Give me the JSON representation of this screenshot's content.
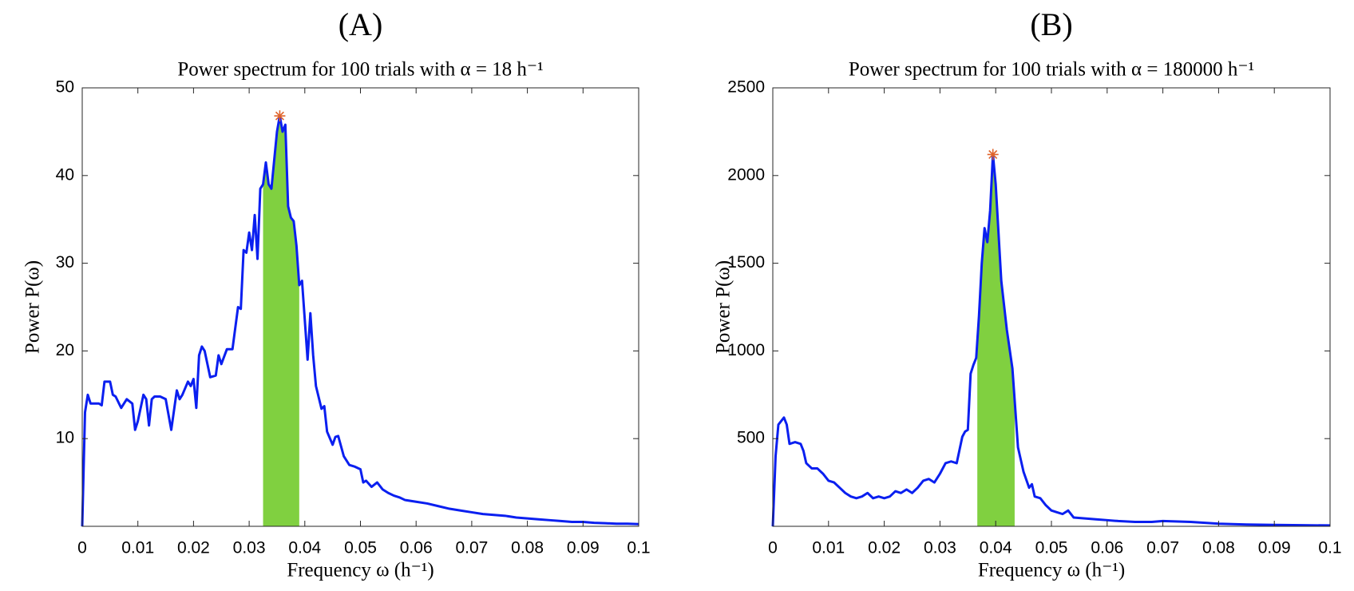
{
  "chart_data": [
    {
      "type": "line",
      "title": "(A)",
      "subtitle": "Power spectrum for 100 trials with α = 18 h⁻¹",
      "xlabel": "Frequency ω (h⁻¹)",
      "ylabel": "Power P(ω)",
      "color": "#0a1ff0",
      "x": [
        0,
        0.0005,
        0.001,
        0.0015,
        0.002,
        0.003,
        0.0035,
        0.004,
        0.005,
        0.0055,
        0.006,
        0.007,
        0.008,
        0.009,
        0.0095,
        0.01,
        0.011,
        0.0115,
        0.012,
        0.0125,
        0.013,
        0.014,
        0.015,
        0.016,
        0.017,
        0.0175,
        0.018,
        0.019,
        0.0195,
        0.02,
        0.0205,
        0.021,
        0.0215,
        0.022,
        0.023,
        0.024,
        0.0245,
        0.025,
        0.026,
        0.027,
        0.028,
        0.0285,
        0.029,
        0.0295,
        0.03,
        0.0305,
        0.031,
        0.0315,
        0.032,
        0.0325,
        0.033,
        0.0335,
        0.034,
        0.035,
        0.0355,
        0.036,
        0.0365,
        0.037,
        0.0375,
        0.038,
        0.0385,
        0.039,
        0.0395,
        0.0405,
        0.041,
        0.0415,
        0.042,
        0.043,
        0.0435,
        0.044,
        0.045,
        0.0455,
        0.046,
        0.047,
        0.048,
        0.049,
        0.05,
        0.0505,
        0.051,
        0.052,
        0.053,
        0.054,
        0.055,
        0.056,
        0.057,
        0.058,
        0.06,
        0.062,
        0.064,
        0.066,
        0.068,
        0.07,
        0.072,
        0.074,
        0.076,
        0.078,
        0.08,
        0.082,
        0.084,
        0.086,
        0.088,
        0.09,
        0.092,
        0.094,
        0.096,
        0.098,
        0.1
      ],
      "values": [
        0,
        13,
        15,
        14,
        14,
        14,
        13.8,
        16.5,
        16.5,
        15,
        14.8,
        13.5,
        14.5,
        14,
        11,
        12,
        15,
        14.5,
        11.5,
        14.5,
        14.8,
        14.8,
        14.5,
        11,
        15.5,
        14.5,
        15,
        16.5,
        16,
        16.8,
        13.5,
        19.5,
        20.5,
        20,
        17,
        17.2,
        19.5,
        18.5,
        20.2,
        20.2,
        25,
        24.8,
        31.5,
        31.2,
        33.5,
        31.5,
        35.5,
        30.5,
        38.5,
        39,
        41.5,
        39,
        38.5,
        45,
        46.8,
        45,
        45.8,
        36.5,
        35.2,
        34.8,
        32,
        27.5,
        28,
        19,
        24.3,
        19.5,
        16,
        13.4,
        13.7,
        10.8,
        9.3,
        10.2,
        10.3,
        8,
        7,
        6.8,
        6.5,
        5,
        5.2,
        4.5,
        5,
        4.2,
        3.8,
        3.5,
        3.3,
        3,
        2.8,
        2.6,
        2.3,
        2,
        1.8,
        1.6,
        1.4,
        1.3,
        1.2,
        1,
        0.9,
        0.8,
        0.7,
        0.6,
        0.5,
        0.5,
        0.4,
        0.35,
        0.3,
        0.3,
        0.25
      ],
      "highlight": [
        0.0325,
        0.039
      ],
      "highlight_color": "#80d040",
      "peak": {
        "x": 0.0355,
        "y": 46.8
      },
      "peak_color": "#e0632a",
      "xlim": [
        0,
        0.1
      ],
      "xticks": [
        0,
        0.01,
        0.02,
        0.03,
        0.04,
        0.05,
        0.06,
        0.07,
        0.08,
        0.09,
        0.1
      ],
      "ylim": [
        0,
        50
      ],
      "yticks": [
        10,
        20,
        30,
        40,
        50
      ]
    },
    {
      "type": "line",
      "title": "(B)",
      "subtitle": "Power spectrum for 100 trials with α = 180000 h⁻¹",
      "xlabel": "Frequency ω (h⁻¹)",
      "ylabel": "Power P(ω)",
      "color": "#0a1ff0",
      "x": [
        0,
        0.0005,
        0.001,
        0.002,
        0.0025,
        0.003,
        0.004,
        0.005,
        0.0055,
        0.006,
        0.007,
        0.008,
        0.009,
        0.01,
        0.011,
        0.012,
        0.013,
        0.014,
        0.015,
        0.016,
        0.017,
        0.018,
        0.019,
        0.02,
        0.021,
        0.022,
        0.023,
        0.024,
        0.025,
        0.026,
        0.027,
        0.028,
        0.029,
        0.03,
        0.031,
        0.032,
        0.033,
        0.034,
        0.0345,
        0.035,
        0.0355,
        0.036,
        0.0365,
        0.037,
        0.0375,
        0.038,
        0.0385,
        0.039,
        0.0395,
        0.04,
        0.041,
        0.042,
        0.043,
        0.044,
        0.045,
        0.046,
        0.0465,
        0.047,
        0.048,
        0.049,
        0.05,
        0.051,
        0.052,
        0.053,
        0.054,
        0.056,
        0.058,
        0.06,
        0.062,
        0.065,
        0.068,
        0.07,
        0.075,
        0.08,
        0.085,
        0.09,
        0.095,
        0.1
      ],
      "values": [
        0,
        400,
        580,
        620,
        580,
        470,
        480,
        470,
        430,
        360,
        330,
        330,
        300,
        260,
        250,
        220,
        190,
        170,
        160,
        170,
        190,
        160,
        170,
        160,
        170,
        200,
        190,
        210,
        190,
        220,
        260,
        270,
        250,
        300,
        360,
        370,
        360,
        510,
        540,
        550,
        870,
        920,
        960,
        1200,
        1500,
        1700,
        1620,
        1800,
        2120,
        1950,
        1400,
        1120,
        900,
        450,
        310,
        220,
        240,
        170,
        160,
        120,
        90,
        80,
        70,
        90,
        50,
        45,
        40,
        35,
        30,
        25,
        25,
        30,
        25,
        15,
        10,
        8,
        6,
        5
      ],
      "highlight": [
        0.0367,
        0.0434
      ],
      "highlight_color": "#80d040",
      "peak": {
        "x": 0.0395,
        "y": 2120
      },
      "peak_color": "#e0632a",
      "xlim": [
        0,
        0.1
      ],
      "xticks": [
        0,
        0.01,
        0.02,
        0.03,
        0.04,
        0.05,
        0.06,
        0.07,
        0.08,
        0.09,
        0.1
      ],
      "ylim": [
        0,
        2500
      ],
      "yticks": [
        500,
        1000,
        1500,
        2000,
        2500
      ]
    }
  ]
}
